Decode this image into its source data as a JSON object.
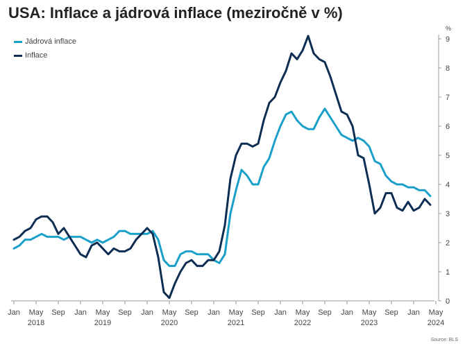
{
  "chart_data": {
    "type": "line",
    "title": "USA: Inflace a jádrová inflace (meziročně v %)",
    "yunit": "%",
    "source": "Source: BLS",
    "ylim": [
      0,
      9
    ],
    "yticks": [
      0,
      1,
      2,
      3,
      4,
      5,
      6,
      7,
      8,
      9
    ],
    "y_axis_position": "right",
    "legend_position": "top-left",
    "grid": false,
    "x_start": "2018-01",
    "x_end": "2024-05",
    "month_ticks": [
      "Jan",
      "May",
      "Sep",
      "Jan",
      "May",
      "Sep",
      "Jan",
      "May",
      "Sep",
      "Jan",
      "May",
      "Sep",
      "Jan",
      "May",
      "Sep",
      "Jan",
      "May",
      "Sep",
      "Jan",
      "May"
    ],
    "year_labels": [
      "2018",
      "2019",
      "2020",
      "2021",
      "2022",
      "2023",
      "2024"
    ],
    "series": [
      {
        "name": "Jádrová inflace",
        "color": "#1aa0c8",
        "values": [
          1.8,
          1.9,
          2.1,
          2.1,
          2.2,
          2.3,
          2.2,
          2.2,
          2.2,
          2.1,
          2.2,
          2.2,
          2.2,
          2.1,
          2.0,
          2.1,
          2.0,
          2.1,
          2.2,
          2.4,
          2.4,
          2.3,
          2.3,
          2.3,
          2.3,
          2.4,
          2.1,
          1.4,
          1.2,
          1.2,
          1.6,
          1.7,
          1.7,
          1.6,
          1.6,
          1.6,
          1.4,
          1.3,
          1.6,
          3.0,
          3.8,
          4.5,
          4.3,
          4.0,
          4.0,
          4.6,
          4.9,
          5.5,
          6.0,
          6.4,
          6.5,
          6.2,
          6.0,
          5.9,
          5.9,
          6.3,
          6.6,
          6.3,
          6.0,
          5.7,
          5.6,
          5.5,
          5.6,
          5.5,
          5.3,
          4.8,
          4.7,
          4.3,
          4.1,
          4.0,
          4.0,
          3.9,
          3.9,
          3.8,
          3.8,
          3.6
        ]
      },
      {
        "name": "Inflace",
        "color": "#0d2d52",
        "values": [
          2.1,
          2.2,
          2.4,
          2.5,
          2.8,
          2.9,
          2.9,
          2.7,
          2.3,
          2.5,
          2.2,
          1.9,
          1.6,
          1.5,
          1.9,
          2.0,
          1.8,
          1.6,
          1.8,
          1.7,
          1.7,
          1.8,
          2.1,
          2.3,
          2.5,
          2.3,
          1.5,
          0.3,
          0.1,
          0.6,
          1.0,
          1.3,
          1.4,
          1.2,
          1.2,
          1.4,
          1.4,
          1.7,
          2.6,
          4.2,
          5.0,
          5.4,
          5.4,
          5.3,
          5.4,
          6.2,
          6.8,
          7.0,
          7.5,
          7.9,
          8.5,
          8.3,
          8.6,
          9.1,
          8.5,
          8.3,
          8.2,
          7.7,
          7.1,
          6.5,
          6.4,
          6.0,
          5.0,
          4.9,
          4.0,
          3.0,
          3.2,
          3.7,
          3.7,
          3.2,
          3.1,
          3.4,
          3.1,
          3.2,
          3.5,
          3.3
        ]
      }
    ]
  }
}
